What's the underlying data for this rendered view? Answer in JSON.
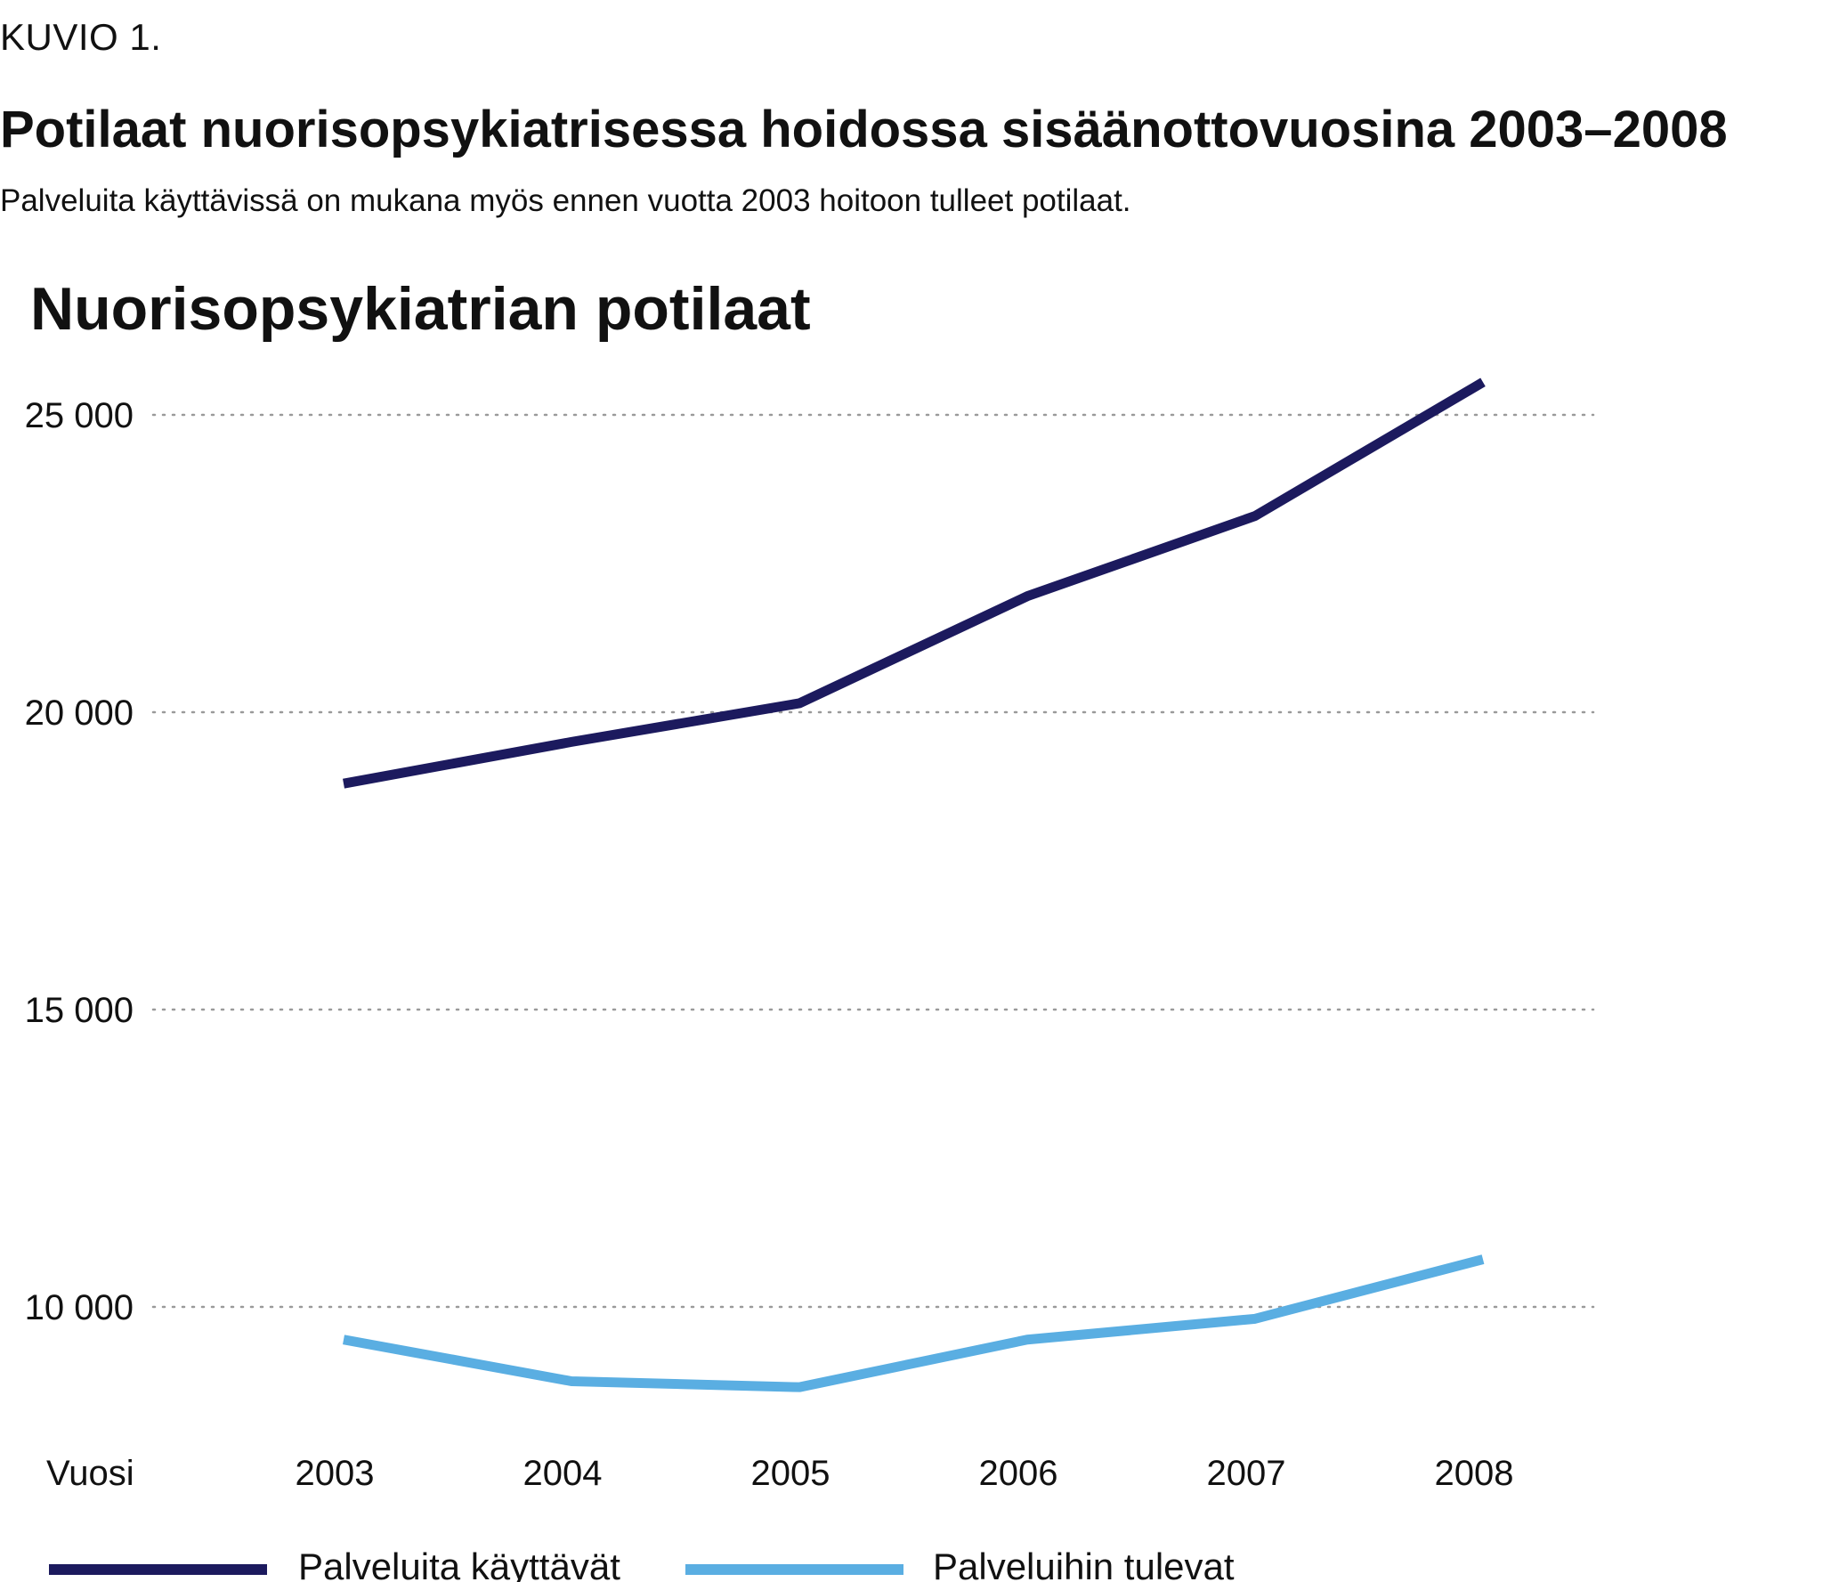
{
  "figure": {
    "label": "KUVIO 1.",
    "title": "Potilaat nuorisopsykiatrisessa hoidossa sisäänottovuosina 2003–2008",
    "subtitle": "Palveluita käyttävissä on mukana myös ennen vuotta 2003 hoitoon tulleet potilaat."
  },
  "chart_data": {
    "type": "line",
    "title": "Nuorisopsykiatrian potilaat",
    "xlabel": "Vuosi",
    "ylabel": "",
    "categories": [
      "2003",
      "2004",
      "2005",
      "2006",
      "2007",
      "2008"
    ],
    "yticks": [
      10000,
      15000,
      20000,
      25000
    ],
    "ytick_labels": [
      "10 000",
      "15 000",
      "20 000",
      "25 000"
    ],
    "ylim": [
      8000,
      26000
    ],
    "grid": "horizontal dotted",
    "legend_position": "bottom",
    "series": [
      {
        "name": "Palveluita käyttävät",
        "color": "#1c1a5e",
        "values": [
          18800,
          19500,
          20150,
          21950,
          23300,
          25550
        ]
      },
      {
        "name": "Palveluihin tulevat",
        "color": "#5aaee2",
        "values": [
          9450,
          8750,
          8650,
          9450,
          9800,
          10800
        ]
      }
    ]
  }
}
